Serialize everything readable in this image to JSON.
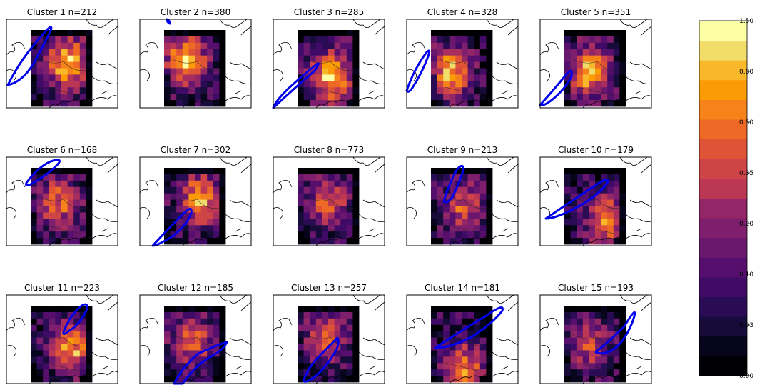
{
  "chart_data": {
    "type": "heatmap",
    "panels": [
      {
        "title": "Cluster 1 n=212",
        "hot": [
          0.62,
          0.42
        ],
        "peak": 1.0
      },
      {
        "title": "Cluster 2 n=380",
        "hot": [
          0.35,
          0.4
        ],
        "peak": 1.0
      },
      {
        "title": "Cluster 3 n=285",
        "hot": [
          0.55,
          0.62
        ],
        "peak": 1.0
      },
      {
        "title": "Cluster 4 n=328",
        "hot": [
          0.3,
          0.55
        ],
        "peak": 0.9
      },
      {
        "title": "Cluster 5 n=351",
        "hot": [
          0.4,
          0.55
        ],
        "peak": 0.9
      },
      {
        "title": "Cluster 6 n=168",
        "hot": [
          0.45,
          0.45
        ],
        "peak": 0.7
      },
      {
        "title": "Cluster 7 n=302",
        "hot": [
          0.6,
          0.4
        ],
        "peak": 0.85
      },
      {
        "title": "Cluster 8 n=773",
        "hot": [
          0.5,
          0.45
        ],
        "peak": 0.6
      },
      {
        "title": "Cluster 9 n=213",
        "hot": [
          0.55,
          0.5
        ],
        "peak": 0.6
      },
      {
        "title": "Cluster 10 n=179",
        "hot": [
          0.7,
          0.7
        ],
        "peak": 0.8
      },
      {
        "title": "Cluster 11 n=223",
        "hot": [
          0.65,
          0.55
        ],
        "peak": 0.9
      },
      {
        "title": "Cluster 12 n=185",
        "hot": [
          0.45,
          0.45
        ],
        "peak": 0.65
      },
      {
        "title": "Cluster 13 n=257",
        "hot": [
          0.45,
          0.4
        ],
        "peak": 0.65
      },
      {
        "title": "Cluster 14 n=181",
        "hot": [
          0.55,
          0.85
        ],
        "peak": 0.75
      },
      {
        "title": "Cluster 15 n=193",
        "hot": [
          0.4,
          0.55
        ],
        "peak": 0.5
      }
    ],
    "colorbar": {
      "ticks": [
        "0.00",
        "0.03",
        "0.10",
        "0.20",
        "0.35",
        "0.50",
        "0.80",
        "1.50"
      ],
      "levels": 18,
      "colormap": "inferno"
    },
    "overlay_color": "#0000ee"
  }
}
